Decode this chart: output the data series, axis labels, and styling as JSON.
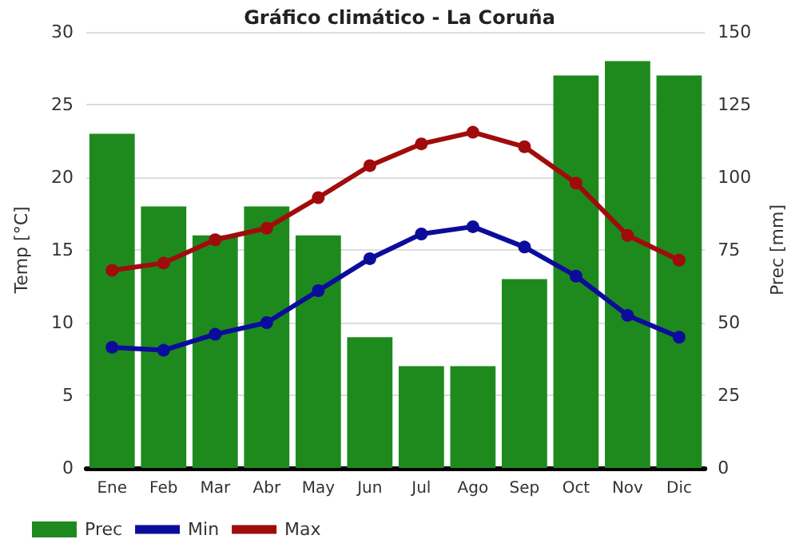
{
  "chart_data": {
    "type": "bar",
    "title": "Gráfico climático - La Coruña",
    "xlabel": null,
    "ylabel": "Temp [°C]",
    "y2label": "Prec [mm]",
    "categories": [
      "Ene",
      "Feb",
      "Mar",
      "Abr",
      "May",
      "Jun",
      "Jul",
      "Ago",
      "Sep",
      "Oct",
      "Nov",
      "Dic"
    ],
    "series": [
      {
        "name": "Prec",
        "axis": "y2",
        "color": "#1e8a1e",
        "values": [
          115,
          90,
          80,
          90,
          80,
          45,
          35,
          35,
          65,
          135,
          140,
          135
        ]
      },
      {
        "name": "Min",
        "type": "line",
        "color": "#0c0c9c",
        "values": [
          8.3,
          8.1,
          9.2,
          10.0,
          12.2,
          14.4,
          16.1,
          16.6,
          15.2,
          13.2,
          10.5,
          9.0
        ]
      },
      {
        "name": "Max",
        "type": "line",
        "color": "#a00c0c",
        "values": [
          13.6,
          14.1,
          15.7,
          16.5,
          18.6,
          20.8,
          22.3,
          23.1,
          22.1,
          19.6,
          16.0,
          14.3
        ]
      }
    ],
    "ylim": [
      0,
      30
    ],
    "yticks": [
      0,
      5,
      10,
      15,
      20,
      25,
      30
    ],
    "y2lim": [
      0,
      150
    ],
    "y2ticks": [
      0,
      25,
      50,
      75,
      100,
      125,
      150
    ],
    "grid": "y",
    "legend": "bottom left",
    "marker": "circle",
    "line_style": "solid"
  }
}
